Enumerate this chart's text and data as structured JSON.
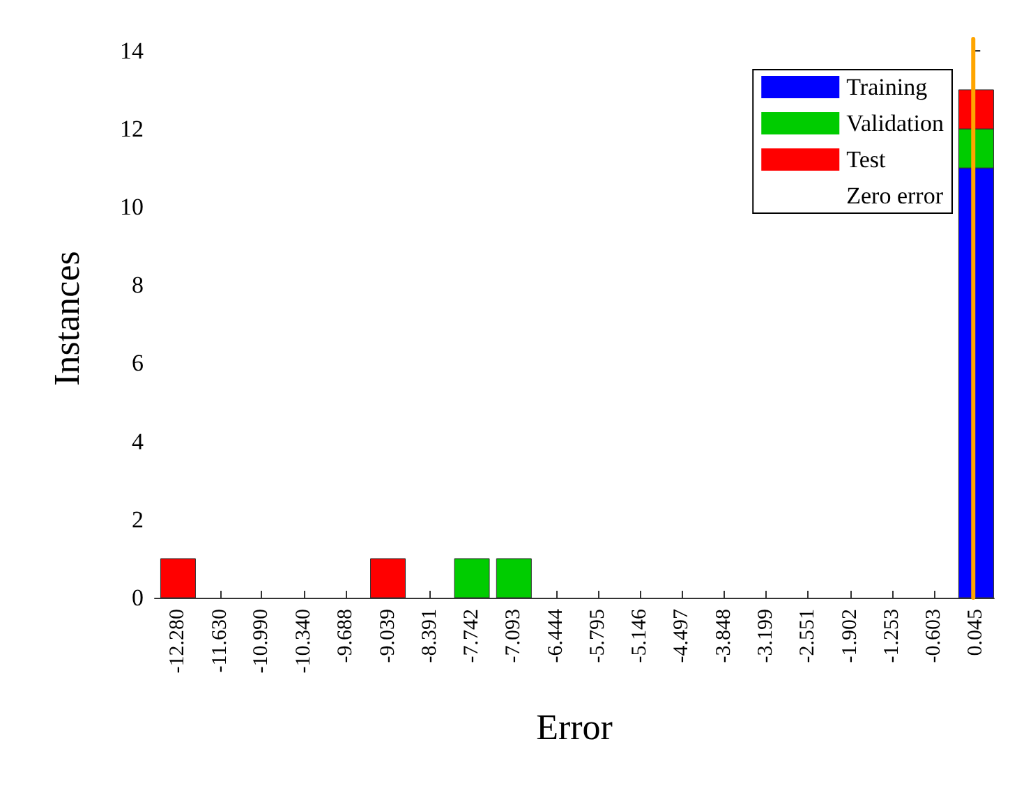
{
  "chart_data": {
    "type": "bar",
    "stacked": true,
    "xlabel": "Error",
    "ylabel": "Instances",
    "x": [
      -12.28,
      -11.63,
      -10.99,
      -10.34,
      -9.688,
      -9.039,
      -8.391,
      -7.742,
      -7.093,
      -6.444,
      -5.795,
      -5.146,
      -4.497,
      -3.848,
      -3.199,
      -2.551,
      -1.902,
      -1.253,
      -0.603,
      0.045
    ],
    "series": [
      {
        "name": "Training",
        "color": "#0000ff",
        "values": [
          0,
          0,
          0,
          0,
          0,
          0,
          0,
          0,
          0,
          0,
          0,
          0,
          0,
          0,
          0,
          0,
          0,
          0,
          0,
          11
        ]
      },
      {
        "name": "Validation",
        "color": "#00cc00",
        "values": [
          0,
          0,
          0,
          0,
          0,
          0,
          0,
          1,
          1,
          0,
          0,
          0,
          0,
          0,
          0,
          0,
          0,
          0,
          0,
          1
        ]
      },
      {
        "name": "Test",
        "color": "#ff0000",
        "values": [
          1,
          0,
          0,
          0,
          0,
          1,
          0,
          0,
          0,
          0,
          0,
          0,
          0,
          0,
          0,
          0,
          0,
          0,
          0,
          1
        ]
      }
    ],
    "ref_lines": [
      {
        "axis": "x",
        "value": 0,
        "label": "Zero error",
        "color": "#ffa500"
      }
    ],
    "xlim": [
      -12.64,
      0.32
    ],
    "xticks": [
      {
        "value": -12.28,
        "label": "-12.280"
      },
      {
        "value": -11.63,
        "label": "-11.630"
      },
      {
        "value": -10.99,
        "label": "-10.990"
      },
      {
        "value": -10.34,
        "label": "-10.340"
      },
      -9.688,
      -9.039,
      -8.391,
      -7.742,
      -7.093,
      -6.444,
      -5.795,
      -5.146,
      -4.497,
      -3.848,
      -3.199,
      -2.551,
      -1.902,
      -1.253,
      -0.603,
      0.045
    ],
    "ylim": [
      0,
      14.3
    ],
    "yticks": [
      0,
      2,
      4,
      6,
      8,
      10,
      12,
      14
    ],
    "legend": "top right",
    "grid": false
  }
}
